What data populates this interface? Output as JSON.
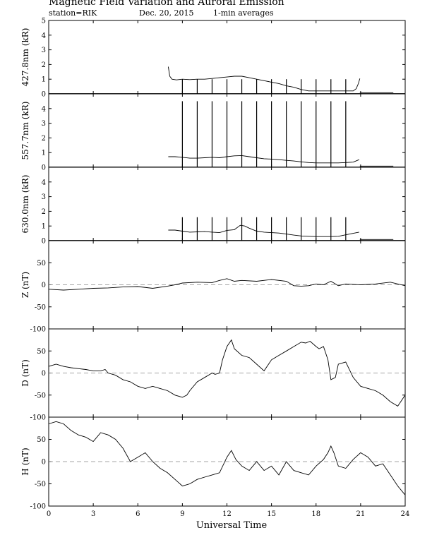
{
  "header": {
    "title": "Magnetic Field Variation and Auroral Emission",
    "station": "station=RIK",
    "date": "Dec. 20, 2015",
    "averaging": "1-min averages"
  },
  "chart_data": {
    "type": "line",
    "xlabel": "Universal Time",
    "xlim": [
      0,
      24
    ],
    "xticks": [
      0,
      3,
      6,
      9,
      12,
      15,
      18,
      21,
      24
    ],
    "panels": [
      {
        "id": "aurora-4278",
        "ylabel": "427.8nm (kR)",
        "ylim": [
          0,
          5
        ],
        "yticks": [
          0,
          1,
          2,
          3,
          4,
          5
        ],
        "series": [
          {
            "x": [
              8.05,
              8.15,
              8.3,
              8.6,
              9.0,
              9.5,
              10.0,
              10.5,
              11.0,
              11.5,
              12.0,
              12.5,
              13.0,
              13.5,
              14.0,
              14.5,
              15.0,
              15.5,
              16.0,
              16.5,
              17.0,
              17.5,
              18.0,
              18.5,
              19.0,
              19.5,
              20.0,
              20.5,
              20.7,
              20.85,
              20.95
            ],
            "y": [
              1.85,
              1.2,
              1.0,
              0.95,
              1.0,
              0.97,
              1.0,
              1.0,
              1.05,
              1.1,
              1.15,
              1.2,
              1.2,
              1.1,
              1.0,
              0.9,
              0.8,
              0.7,
              0.55,
              0.45,
              0.3,
              0.2,
              0.2,
              0.2,
              0.2,
              0.2,
              0.2,
              0.2,
              0.35,
              0.7,
              1.05
            ]
          },
          {
            "x": [
              20.95,
              23.2
            ],
            "y": [
              0.08,
              0.08
            ]
          }
        ],
        "spikes": {
          "x": [
            9,
            10,
            11,
            12,
            13,
            14,
            15,
            16,
            17,
            18,
            19,
            20
          ],
          "peak": 1.0
        }
      },
      {
        "id": "aurora-5577",
        "ylabel": "557.7nm (kR)",
        "ylim": [
          0,
          5
        ],
        "yticks": [
          0,
          1,
          2,
          3,
          4
        ],
        "series": [
          {
            "x": [
              8.05,
              8.5,
              9.0,
              9.5,
              10.0,
              10.5,
              11.0,
              11.5,
              12.0,
              12.5,
              13.0,
              13.5,
              14.0,
              14.5,
              15.0,
              15.5,
              16.0,
              16.5,
              17.0,
              17.5,
              18.0,
              18.5,
              19.0,
              19.5,
              20.0,
              20.5,
              20.9
            ],
            "y": [
              0.72,
              0.72,
              0.68,
              0.62,
              0.62,
              0.65,
              0.68,
              0.65,
              0.72,
              0.78,
              0.8,
              0.72,
              0.65,
              0.58,
              0.56,
              0.52,
              0.47,
              0.43,
              0.37,
              0.32,
              0.3,
              0.3,
              0.3,
              0.3,
              0.32,
              0.35,
              0.52
            ]
          },
          {
            "x": [
              20.95,
              23.2
            ],
            "y": [
              0.08,
              0.08
            ]
          }
        ],
        "spikes": {
          "x": [
            9,
            10,
            11,
            12,
            13,
            14,
            15,
            16,
            17,
            18,
            19,
            20
          ],
          "peak": 4.5
        }
      },
      {
        "id": "aurora-6300",
        "ylabel": "630.0nm (kR)",
        "ylim": [
          0,
          5
        ],
        "yticks": [
          0,
          1,
          2,
          3,
          4
        ],
        "series": [
          {
            "x": [
              8.05,
              8.5,
              9.0,
              9.5,
              10.0,
              10.5,
              11.0,
              11.5,
              12.0,
              12.5,
              12.9,
              13.2,
              13.5,
              14.0,
              14.5,
              15.0,
              15.5,
              16.0,
              16.5,
              17.0,
              17.5,
              18.0,
              18.5,
              19.0,
              19.5,
              20.0,
              20.5,
              20.9
            ],
            "y": [
              0.72,
              0.72,
              0.65,
              0.58,
              0.6,
              0.62,
              0.58,
              0.55,
              0.7,
              0.75,
              1.05,
              1.0,
              0.85,
              0.65,
              0.58,
              0.55,
              0.52,
              0.45,
              0.38,
              0.32,
              0.3,
              0.28,
              0.28,
              0.28,
              0.3,
              0.4,
              0.5,
              0.58
            ]
          },
          {
            "x": [
              20.95,
              23.2
            ],
            "y": [
              0.08,
              0.08
            ]
          }
        ],
        "spikes": {
          "x": [
            9,
            10,
            11,
            12,
            13,
            14,
            15,
            16,
            17,
            18,
            19,
            20
          ],
          "peak": 1.6
        }
      },
      {
        "id": "mag-z",
        "ylabel": "Z (nT)",
        "ylim": [
          -100,
          100
        ],
        "yticks": [
          -100,
          -50,
          0,
          50
        ],
        "zero_line": true,
        "series": [
          {
            "x": [
              0,
              1,
              2,
              3,
              4,
              5,
              6,
              7,
              8,
              8.5,
              9,
              10,
              11,
              11.5,
              12,
              12.5,
              13,
              14,
              15,
              16,
              16.5,
              17,
              17.5,
              18,
              18.5,
              19,
              19.5,
              20,
              21,
              22,
              23,
              24
            ],
            "y": [
              -10,
              -12,
              -10,
              -8,
              -7,
              -5,
              -4,
              -8,
              -3,
              0,
              4,
              6,
              5,
              10,
              14,
              8,
              10,
              8,
              12,
              8,
              -2,
              -3,
              -2,
              2,
              0,
              8,
              -2,
              2,
              0,
              2,
              6,
              -2
            ]
          }
        ]
      },
      {
        "id": "mag-d",
        "ylabel": "D (nT)",
        "ylim": [
          -100,
          100
        ],
        "yticks": [
          -100,
          -50,
          0,
          50
        ],
        "zero_line": true,
        "series": [
          {
            "x": [
              0,
              0.5,
              1,
              1.5,
              2,
              2.5,
              3,
              3.5,
              3.8,
              4,
              4.5,
              5,
              5.5,
              6,
              6.5,
              7,
              7.5,
              8,
              8.5,
              9,
              9.3,
              9.5,
              10,
              10.5,
              11,
              11.2,
              11.5,
              11.7,
              12,
              12.3,
              12.5,
              13,
              13.5,
              14,
              14.5,
              15,
              15.5,
              16,
              16.5,
              17,
              17.3,
              17.6,
              18,
              18.2,
              18.5,
              18.8,
              19,
              19.3,
              19.5,
              20,
              20.5,
              21,
              21.5,
              22,
              22.5,
              23,
              23.5,
              24
            ],
            "y": [
              15,
              20,
              15,
              12,
              10,
              8,
              5,
              5,
              8,
              0,
              -5,
              -15,
              -20,
              -30,
              -35,
              -30,
              -35,
              -40,
              -50,
              -55,
              -50,
              -40,
              -20,
              -10,
              0,
              -3,
              0,
              30,
              60,
              75,
              55,
              40,
              35,
              20,
              5,
              30,
              40,
              50,
              60,
              70,
              68,
              72,
              60,
              55,
              60,
              30,
              -15,
              -10,
              20,
              25,
              -10,
              -30,
              -35,
              -40,
              -50,
              -65,
              -75,
              -50
            ]
          }
        ]
      },
      {
        "id": "mag-h",
        "ylabel": "H (nT)",
        "ylim": [
          -100,
          100
        ],
        "yticks": [
          -100,
          -50,
          0,
          50
        ],
        "zero_line": true,
        "series": [
          {
            "x": [
              0,
              0.5,
              1,
              1.5,
              2,
              2.5,
              3,
              3.5,
              4,
              4.5,
              5,
              5.5,
              6,
              6.5,
              7,
              7.5,
              8,
              8.5,
              9,
              9.5,
              10,
              10.5,
              11,
              11.5,
              12,
              12.3,
              12.6,
              13,
              13.5,
              14,
              14.5,
              15,
              15.5,
              16,
              16.5,
              17,
              17.5,
              18,
              18.5,
              18.8,
              19,
              19.2,
              19.5,
              20,
              20.5,
              21,
              21.5,
              22,
              22.5,
              23,
              23.5,
              24
            ],
            "y": [
              85,
              90,
              85,
              70,
              60,
              55,
              45,
              65,
              60,
              50,
              30,
              0,
              10,
              20,
              0,
              -15,
              -25,
              -40,
              -55,
              -50,
              -40,
              -35,
              -30,
              -25,
              10,
              25,
              5,
              -10,
              -20,
              0,
              -20,
              -10,
              -30,
              0,
              -20,
              -25,
              -30,
              -10,
              5,
              20,
              35,
              20,
              -10,
              -15,
              5,
              20,
              10,
              -10,
              -5,
              -30,
              -55,
              -75
            ]
          }
        ]
      }
    ]
  }
}
